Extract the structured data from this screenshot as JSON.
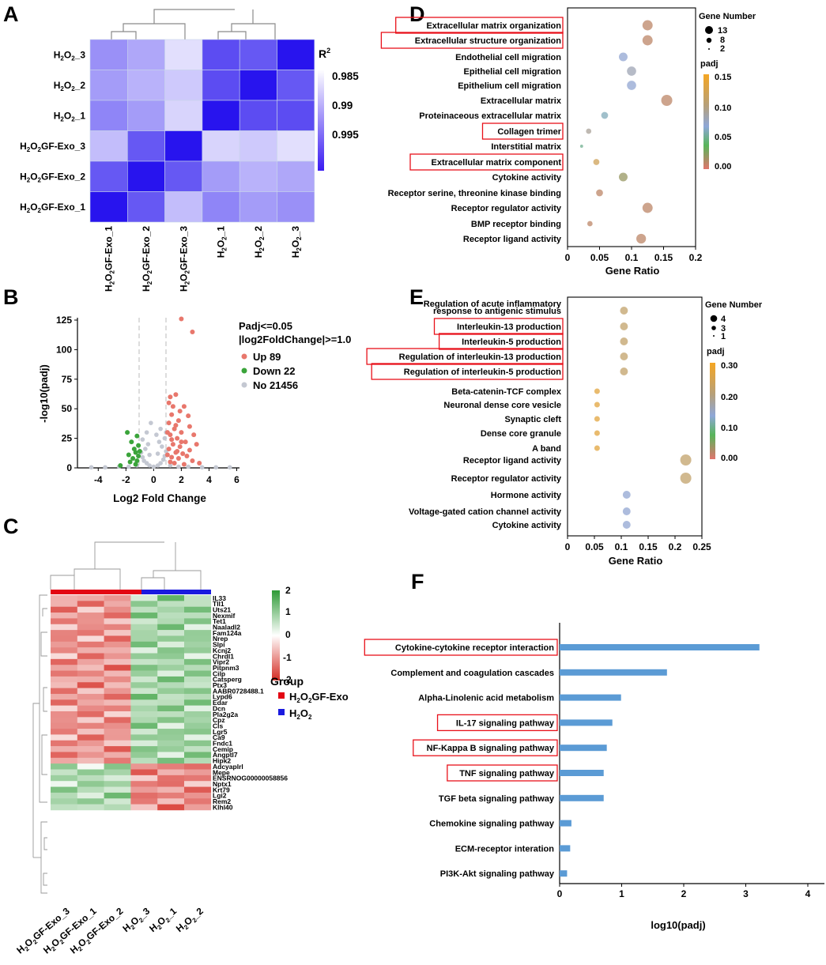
{
  "figure": {
    "panel_labels": [
      "A",
      "B",
      "C",
      "D",
      "E",
      "F"
    ],
    "panel_a": {
      "legend_title": "R",
      "legend_sup": "2",
      "legend_ticks": [
        "0.985",
        "0.99",
        "0.995"
      ],
      "row_labels": [
        {
          "main": "H",
          "s1": "2",
          "mid": "O",
          "s2": "2",
          "tail": "_3"
        },
        {
          "main": "H",
          "s1": "2",
          "mid": "O",
          "s2": "2",
          "tail": "_2"
        },
        {
          "main": "H",
          "s1": "2",
          "mid": "O",
          "s2": "2",
          "tail": "_1"
        },
        {
          "main": "H",
          "s1": "2",
          "mid": "O",
          "s2": "2",
          "tail": "GF-Exo_3"
        },
        {
          "main": "H",
          "s1": "2",
          "mid": "O",
          "s2": "2",
          "tail": "GF-Exo_2"
        },
        {
          "main": "H",
          "s1": "2",
          "mid": "O",
          "s2": "2",
          "tail": "GF-Exo_1"
        }
      ],
      "col_labels": [
        {
          "main": "H",
          "s1": "2",
          "mid": "O",
          "s2": "2",
          "tail": "GF-Exo_1"
        },
        {
          "main": "H",
          "s1": "2",
          "mid": "O",
          "s2": "2",
          "tail": "GF-Exo_2"
        },
        {
          "main": "H",
          "s1": "2",
          "mid": "O",
          "s2": "2",
          "tail": "GF-Exo_3"
        },
        {
          "main": "H",
          "s1": "2",
          "mid": "O",
          "s2": "2",
          "tail": "_1"
        },
        {
          "main": "H",
          "s1": "2",
          "mid": "O",
          "s2": "2",
          "tail": "_2"
        },
        {
          "main": "H",
          "s1": "2",
          "mid": "O",
          "s2": "2",
          "tail": "_3"
        }
      ]
    },
    "panel_b": {
      "ylabel": "-log10(padj)",
      "xlabel": "Log2 Fold Change",
      "xticks": [
        "-4",
        "-2",
        "0",
        "2",
        "4",
        "6"
      ],
      "yticks": [
        "0",
        "25",
        "50",
        "75",
        "100",
        "125"
      ],
      "legend": [
        "Padj<=0.05",
        "|log2FoldChange|>=1.0",
        "Up 89",
        "Down 22",
        "No 21456"
      ]
    },
    "panel_c": {
      "scale_ticks": [
        "2",
        "1",
        "0",
        "-1",
        "-2"
      ],
      "group_title": "Group",
      "groups": [
        {
          "main": "H",
          "s1": "2",
          "mid": "O",
          "s2": "2",
          "tail": "GF-Exo"
        },
        {
          "main": "H",
          "s1": "2",
          "mid": "O",
          "s2": "2",
          "tail": ""
        }
      ],
      "genes": [
        "IL33",
        "Tll1",
        "Uts21",
        "Nexmif",
        "Tet1",
        "Naaladl2",
        "Fam124a",
        "Nrep",
        "Slpi",
        "Kcnj2",
        "Chrdl1",
        "Vipr2",
        "Pitpnm3",
        "Cilp",
        "Catsperg",
        "Ptx3",
        "AABR0728488.1",
        "Lypd6",
        "Edar",
        "Dcn",
        "Pla2g2a",
        "Cpz",
        "Cls",
        "Lgr5",
        "Ca9",
        "Fndc1",
        "Cemip",
        "Angptl7",
        "Hipk2",
        "Adcyaplrl",
        "Mepe",
        "ENSRNOG00000058856",
        "Nptx1",
        "Krt79",
        "Lgi2",
        "Rem2",
        "Klhl40"
      ],
      "col_labels": [
        {
          "main": "H",
          "s1": "2",
          "mid": "O",
          "s2": "2",
          "tail": "GF-Exo_3"
        },
        {
          "main": "H",
          "s1": "2",
          "mid": "O",
          "s2": "2",
          "tail": "GF-Exo_1"
        },
        {
          "main": "H",
          "s1": "2",
          "mid": "O",
          "s2": "2",
          "tail": "GF-Exo_2"
        },
        {
          "main": "H",
          "s1": "2",
          "mid": "O",
          "s2": "2",
          "tail": "_3"
        },
        {
          "main": "H",
          "s1": "2",
          "mid": "O",
          "s2": "2",
          "tail": "_1"
        },
        {
          "main": "H",
          "s1": "2",
          "mid": "O",
          "s2": "2",
          "tail": "_2"
        }
      ]
    },
    "panel_d": {
      "size_title": "Gene Number",
      "size_ticks": [
        "13",
        "8",
        "2"
      ],
      "color_title": "padj",
      "color_ticks": [
        "0.15",
        "0.10",
        "0.05",
        "0.00"
      ],
      "xlabel": "Gene Ratio",
      "xticks": [
        "0",
        "0.05",
        "0.1",
        "0.15",
        "0.2"
      ]
    },
    "panel_e": {
      "size_title": "Gene Number",
      "size_ticks": [
        "4",
        "3",
        "1"
      ],
      "color_title": "padj",
      "color_ticks": [
        "0.30",
        "0.20",
        "0.10",
        "0.00"
      ],
      "xlabel": "Gene Ratio",
      "xticks": [
        "0",
        "0.05",
        "0.1",
        "0.15",
        "0.2",
        "0.25"
      ]
    },
    "panel_f": {
      "xlabel": "log10(padj)",
      "xticks": [
        "0",
        "1",
        "2",
        "3",
        "4"
      ]
    }
  },
  "chart_data": [
    {
      "type": "heatmap",
      "panel": "A",
      "title": "",
      "legend_title": "R2",
      "color_range": [
        0.98,
        1.0
      ],
      "rows": [
        "H2O2_3",
        "H2O2_2",
        "H2O2_1",
        "H2O2GF-Exo_3",
        "H2O2GF-Exo_2",
        "H2O2GF-Exo_1"
      ],
      "columns": [
        "H2O2GF-Exo_1",
        "H2O2GF-Exo_2",
        "H2O2GF-Exo_3",
        "H2O2_1",
        "H2O2_2",
        "H2O2_3"
      ],
      "values": [
        [
          0.989,
          0.987,
          0.982,
          0.995,
          0.994,
          1.0
        ],
        [
          0.988,
          0.986,
          0.984,
          0.995,
          1.0,
          0.994
        ],
        [
          0.99,
          0.988,
          0.983,
          1.0,
          0.995,
          0.995
        ],
        [
          0.985,
          0.994,
          1.0,
          0.983,
          0.984,
          0.982
        ],
        [
          0.994,
          1.0,
          0.994,
          0.988,
          0.986,
          0.987
        ],
        [
          1.0,
          0.994,
          0.985,
          0.99,
          0.988,
          0.989
        ]
      ]
    },
    {
      "type": "scatter",
      "panel": "B",
      "title": "",
      "xlabel": "Log2 Fold Change",
      "ylabel": "-log10(padj)",
      "xlim": [
        -5.5,
        6.2
      ],
      "ylim": [
        0,
        127
      ],
      "series": [
        {
          "name": "Up 89",
          "color": "#e8776c",
          "points": [
            [
              2.8,
              115
            ],
            [
              2.0,
              126
            ],
            [
              1.2,
              60
            ],
            [
              1.6,
              62
            ],
            [
              1.1,
              55
            ],
            [
              1.4,
              52
            ],
            [
              1.9,
              48
            ],
            [
              2.2,
              52
            ],
            [
              2.5,
              44
            ],
            [
              1.3,
              45
            ],
            [
              1.8,
              40
            ],
            [
              2.6,
              35
            ],
            [
              1.1,
              38
            ],
            [
              1.5,
              33
            ],
            [
              2.0,
              30
            ],
            [
              2.9,
              28
            ],
            [
              1.2,
              28
            ],
            [
              1.7,
              25
            ],
            [
              2.3,
              22
            ],
            [
              3.1,
              20
            ],
            [
              1.4,
              20
            ],
            [
              1.9,
              18
            ],
            [
              2.6,
              15
            ],
            [
              1.1,
              16
            ],
            [
              1.6,
              13
            ],
            [
              2.1,
              12
            ],
            [
              2.4,
              10
            ],
            [
              1.3,
              9
            ],
            [
              1.8,
              8
            ],
            [
              2.8,
              6
            ],
            [
              1.2,
              5
            ],
            [
              1.5,
              4
            ],
            [
              2.2,
              3
            ],
            [
              3.3,
              4
            ],
            [
              1.0,
              11
            ],
            [
              1.7,
              14
            ],
            [
              2.0,
              22
            ],
            [
              1.3,
              24
            ],
            [
              1.0,
              30
            ],
            [
              1.6,
              36
            ]
          ]
        },
        {
          "name": "Down 22",
          "color": "#3aa43a",
          "points": [
            [
              -1.9,
              30
            ],
            [
              -1.2,
              27
            ],
            [
              -1.6,
              22
            ],
            [
              -1.1,
              19
            ],
            [
              -1.4,
              16
            ],
            [
              -1.3,
              13
            ],
            [
              -1.8,
              11
            ],
            [
              -1.1,
              10
            ],
            [
              -1.5,
              8
            ],
            [
              -1.2,
              6
            ],
            [
              -1.7,
              5
            ],
            [
              -2.4,
              2
            ],
            [
              -1.0,
              14
            ],
            [
              -1.3,
              3
            ]
          ]
        },
        {
          "name": "No 21456",
          "color": "#c4c8d2",
          "points": [
            [
              0.0,
              1
            ],
            [
              0.3,
              2
            ],
            [
              -0.3,
              2
            ],
            [
              0.5,
              4
            ],
            [
              -0.5,
              4
            ],
            [
              0.7,
              7
            ],
            [
              -0.7,
              6
            ],
            [
              0.8,
              10
            ],
            [
              -0.8,
              9
            ],
            [
              0.9,
              14
            ],
            [
              -0.9,
              13
            ],
            [
              0.6,
              18
            ],
            [
              -0.6,
              16
            ],
            [
              0.4,
              22
            ],
            [
              -0.4,
              20
            ],
            [
              0.8,
              25
            ],
            [
              -0.8,
              24
            ],
            [
              0.2,
              28
            ],
            [
              0.5,
              33
            ],
            [
              -0.2,
              38
            ],
            [
              0.9,
              30
            ],
            [
              -0.5,
              30
            ],
            [
              0.3,
              12
            ],
            [
              -0.3,
              11
            ],
            [
              1.2,
              2
            ],
            [
              -1.2,
              2
            ],
            [
              1.8,
              1
            ],
            [
              -1.8,
              1
            ],
            [
              2.5,
              1
            ],
            [
              -2.5,
              1
            ],
            [
              3.5,
              0.5
            ],
            [
              -3.5,
              0.5
            ],
            [
              4.5,
              0.5
            ],
            [
              -4.5,
              0.5
            ],
            [
              5.5,
              0.5
            ]
          ]
        }
      ]
    },
    {
      "type": "heatmap",
      "panel": "C",
      "title": "",
      "color_range": [
        -2,
        2
      ],
      "columns": [
        "H2O2GF-Exo_3",
        "H2O2GF-Exo_1",
        "H2O2GF-Exo_2",
        "H2O2_3",
        "H2O2_1",
        "H2O2_2"
      ],
      "groups": [
        "H2O2GF-Exo",
        "H2O2GF-Exo",
        "H2O2GF-Exo",
        "H2O2",
        "H2O2",
        "H2O2"
      ],
      "rows": [
        "IL33",
        "Tll1",
        "Uts21",
        "Nexmif",
        "Tet1",
        "Naaladl2",
        "Fam124a",
        "Nrep",
        "Slpi",
        "Kcnj2",
        "Chrdl1",
        "Vipr2",
        "Pitpnm3",
        "Cilp",
        "Catsperg",
        "Ptx3",
        "AABR0728488.1",
        "Lypd6",
        "Edar",
        "Dcn",
        "Pla2g2a",
        "Cpz",
        "Cls",
        "Lgr5",
        "Ca9",
        "Fndc1",
        "Cemip",
        "Angptl7",
        "Hipk2",
        "Adcyaplrl",
        "Mepe",
        "ENSRNOG00000058856",
        "Nptx1",
        "Krt79",
        "Lgi2",
        "Rem2",
        "Klhl40"
      ],
      "pattern": "first 29 genes low in H2O2GF-Exo (red) and high in H2O2 (green); last 8 genes high in H2O2GF-Exo and low in H2O2"
    },
    {
      "type": "scatter",
      "panel": "D",
      "title": "",
      "xlabel": "Gene Ratio",
      "xlim": [
        0,
        0.2
      ],
      "size_legend": "Gene Number",
      "color_legend": "padj",
      "color_range": [
        0.0,
        0.15
      ],
      "terms": [
        "Extracellular matrix organization",
        "Extracellular structure organization",
        "Endothelial cell migration",
        "Epithelial cell migration",
        "Epithelium cell migration",
        "Extracellular matrix",
        "Proteinaceous extracellular matrix",
        "Collagen trimer",
        "Interstitial matrix",
        "Extracellular matrix component",
        "Cytokine activity",
        "Receptor serine, threonine kinase binding",
        "Receptor regulator activity",
        "BMP receptor binding",
        "Receptor ligand activity"
      ],
      "highlighted": [
        true,
        true,
        false,
        false,
        false,
        false,
        false,
        true,
        false,
        true,
        false,
        false,
        false,
        false,
        false
      ],
      "gene_ratio": [
        0.125,
        0.125,
        0.087,
        0.1,
        0.1,
        0.155,
        0.058,
        0.033,
        0.022,
        0.045,
        0.087,
        0.05,
        0.125,
        0.035,
        0.115
      ],
      "gene_number": [
        11,
        11,
        8,
        9,
        9,
        13,
        5,
        3,
        1,
        4,
        8,
        5,
        11,
        3,
        10
      ],
      "padj": [
        0.01,
        0.01,
        0.07,
        0.08,
        0.07,
        0.01,
        0.06,
        0.09,
        0.05,
        0.12,
        0.02,
        0.01,
        0.01,
        0.01,
        0.01
      ]
    },
    {
      "type": "scatter",
      "panel": "E",
      "title": "",
      "xlabel": "Gene Ratio",
      "xlim": [
        0,
        0.25
      ],
      "size_legend": "Gene Number",
      "color_legend": "padj",
      "color_range": [
        0.0,
        0.3
      ],
      "terms": [
        "Regulation of acute inflammatory|response to antigenic stimulus",
        "Interleukin-13 production",
        "Interleukin-5 production",
        "Regulation of interleukin-13 production",
        "Regulation of interleukin-5 production",
        "Beta-catenin-TCF complex",
        "Neuronal dense core vesicle",
        "Synaptic cleft",
        "Dense core granule",
        "A band",
        "Receptor ligand activity",
        "Receptor regulator activity",
        "Hormone activity",
        "Voltage-gated cation channel activity",
        "Cytokine activity"
      ],
      "highlighted": [
        false,
        true,
        true,
        true,
        true,
        false,
        false,
        false,
        false,
        false,
        false,
        false,
        false,
        false,
        false
      ],
      "gene_ratio": [
        0.105,
        0.105,
        0.105,
        0.105,
        0.105,
        0.055,
        0.055,
        0.055,
        0.055,
        0.055,
        0.22,
        0.22,
        0.11,
        0.11,
        0.11
      ],
      "gene_number": [
        2,
        2,
        2,
        2,
        2,
        1,
        1,
        1,
        1,
        1,
        4,
        4,
        2,
        2,
        2
      ],
      "padj": [
        0.22,
        0.22,
        0.22,
        0.22,
        0.22,
        0.27,
        0.27,
        0.27,
        0.27,
        0.27,
        0.22,
        0.22,
        0.14,
        0.14,
        0.14
      ]
    },
    {
      "type": "bar",
      "panel": "F",
      "orientation": "horizontal",
      "title": "",
      "xlabel": "log10(padj)",
      "xlim": [
        0,
        4
      ],
      "categories": [
        "Cytokine-cytokine receptor interaction",
        "Complement and coagulation cascades",
        "Alpha-Linolenic acid metabolism",
        "IL-17 signaling pathway",
        "NF-Kappa B signaling pathway",
        "TNF signaling pathway",
        "TGF beta signaling pathway",
        "Chemokine signaling pathway",
        "ECM-receptor interation",
        "PI3K-Akt signaling pathway"
      ],
      "highlighted": [
        true,
        false,
        false,
        true,
        true,
        true,
        false,
        false,
        false,
        false
      ],
      "values": [
        3.22,
        1.73,
        0.99,
        0.85,
        0.76,
        0.71,
        0.71,
        0.19,
        0.17,
        0.12
      ]
    }
  ]
}
